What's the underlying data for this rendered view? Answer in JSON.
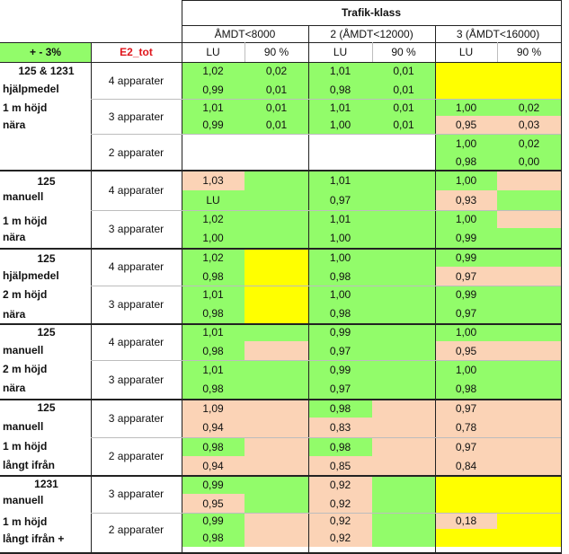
{
  "header": {
    "title": "Trafik-klass",
    "groups": [
      "ÅMDT<8000",
      "2 (ÅMDT<12000)",
      "3 (ÅMDT<16000)"
    ],
    "sub": [
      "LU",
      "90 %",
      "LU",
      "90 %",
      "LU",
      "90 %"
    ],
    "corner": "+ - 3%",
    "e2tot": "E2_tot"
  },
  "colors": {
    "green": "#92fc6a",
    "peach": "#fbd3b6",
    "yellow": "#ffff00",
    "header_green": "#92fc6a",
    "e2tot_text": "#e0161c"
  },
  "row_labels": [
    "125 & 1231",
    "hjälpmedel",
    "1 m höjd",
    "nära",
    "125",
    "manuell",
    "1 m höjd",
    "nära",
    "125",
    "hjälpmedel",
    "2 m höjd",
    "nära",
    "125",
    "manuell",
    "2 m höjd",
    "nära",
    "125",
    "manuell",
    "1 m höjd",
    "långt ifrån",
    "1231",
    "manuell",
    "1 m höjd",
    "långt ifrån +"
  ],
  "apparater": [
    "4 apparater",
    "3 apparater",
    "2 apparater",
    "4 apparater",
    "3 apparater",
    "4 apparater",
    "3 apparater",
    "4 apparater",
    "3 apparater",
    "3 apparater",
    "2 apparater",
    "3 apparater",
    "2 apparater"
  ],
  "table": [
    [
      "1,02",
      "0,02",
      "1,01",
      "0,01",
      "",
      ""
    ],
    [
      "0,99",
      "0,01",
      "0,98",
      "0,01",
      "",
      ""
    ],
    [
      "1,01",
      "0,01",
      "1,01",
      "0,01",
      "1,00",
      "0,02"
    ],
    [
      "0,99",
      "0,01",
      "1,00",
      "0,01",
      "0,95",
      "0,03"
    ],
    [
      "",
      "",
      "",
      "",
      "1,00",
      "0,02"
    ],
    [
      "",
      "",
      "",
      "",
      "0,98",
      "0,00"
    ],
    [
      "1,03",
      "",
      "1,01",
      "",
      "1,00",
      ""
    ],
    [
      "LU",
      "",
      "0,97",
      "",
      "0,93",
      ""
    ],
    [
      "1,02",
      "",
      "1,01",
      "",
      "1,00",
      ""
    ],
    [
      "1,00",
      "",
      "1,00",
      "",
      "0,99",
      ""
    ],
    [
      "1,02",
      "",
      "1,00",
      "",
      "0,99",
      ""
    ],
    [
      "0,98",
      "",
      "0,98",
      "",
      "0,97",
      ""
    ],
    [
      "1,01",
      "",
      "1,00",
      "",
      "0,99",
      ""
    ],
    [
      "0,98",
      "",
      "0,98",
      "",
      "0,97",
      ""
    ],
    [
      "1,01",
      "",
      "0,99",
      "",
      "1,00",
      ""
    ],
    [
      "0,98",
      "",
      "0,97",
      "",
      "0,95",
      ""
    ],
    [
      "1,01",
      "",
      "0,99",
      "",
      "1,00",
      ""
    ],
    [
      "0,98",
      "",
      "0,97",
      "",
      "0,98",
      ""
    ],
    [
      "1,09",
      "",
      "0,98",
      "",
      "0,97",
      ""
    ],
    [
      "0,94",
      "",
      "0,83",
      "",
      "0,78",
      ""
    ],
    [
      "0,98",
      "",
      "0,98",
      "",
      "0,97",
      ""
    ],
    [
      "0,94",
      "",
      "0,85",
      "",
      "0,84",
      ""
    ],
    [
      "0,99",
      "",
      "0,92",
      "",
      "",
      ""
    ],
    [
      "0,95",
      "",
      "0,92",
      "",
      "",
      ""
    ],
    [
      "0,99",
      "",
      "0,92",
      "",
      "0,18",
      ""
    ],
    [
      "0,98",
      "",
      "0,92",
      "",
      "",
      ""
    ]
  ],
  "fills": [
    [
      "g",
      "g",
      "g",
      "g",
      "y",
      "y"
    ],
    [
      "g",
      "g",
      "g",
      "g",
      "y",
      "y"
    ],
    [
      "g",
      "g",
      "g",
      "g",
      "g",
      "g"
    ],
    [
      "g",
      "g",
      "g",
      "g",
      "p",
      "p"
    ],
    [
      "w",
      "w",
      "w",
      "w",
      "g",
      "g"
    ],
    [
      "w",
      "w",
      "w",
      "w",
      "g",
      "g"
    ],
    [
      "p",
      "g",
      "g",
      "g",
      "g",
      "p"
    ],
    [
      "g",
      "g",
      "g",
      "g",
      "p",
      "g"
    ],
    [
      "g",
      "g",
      "g",
      "g",
      "g",
      "p"
    ],
    [
      "g",
      "g",
      "g",
      "g",
      "g",
      "g"
    ],
    [
      "g",
      "y",
      "g",
      "g",
      "g",
      "g"
    ],
    [
      "g",
      "y",
      "g",
      "g",
      "p",
      "p"
    ],
    [
      "g",
      "y",
      "g",
      "g",
      "g",
      "g"
    ],
    [
      "g",
      "y",
      "g",
      "g",
      "g",
      "g"
    ],
    [
      "g",
      "g",
      "g",
      "g",
      "g",
      "g"
    ],
    [
      "g",
      "p",
      "g",
      "g",
      "p",
      "p"
    ],
    [
      "g",
      "g",
      "g",
      "g",
      "g",
      "g"
    ],
    [
      "g",
      "g",
      "g",
      "g",
      "g",
      "g"
    ],
    [
      "p",
      "p",
      "g",
      "p",
      "p",
      "p"
    ],
    [
      "p",
      "p",
      "p",
      "p",
      "p",
      "p"
    ],
    [
      "g",
      "p",
      "g",
      "p",
      "p",
      "p"
    ],
    [
      "p",
      "p",
      "p",
      "p",
      "p",
      "p"
    ],
    [
      "g",
      "g",
      "p",
      "g",
      "y",
      "y"
    ],
    [
      "p",
      "g",
      "p",
      "g",
      "y",
      "y"
    ],
    [
      "g",
      "p",
      "p",
      "g",
      "p",
      "y"
    ],
    [
      "g",
      "p",
      "p",
      "g",
      "y",
      "y"
    ]
  ]
}
